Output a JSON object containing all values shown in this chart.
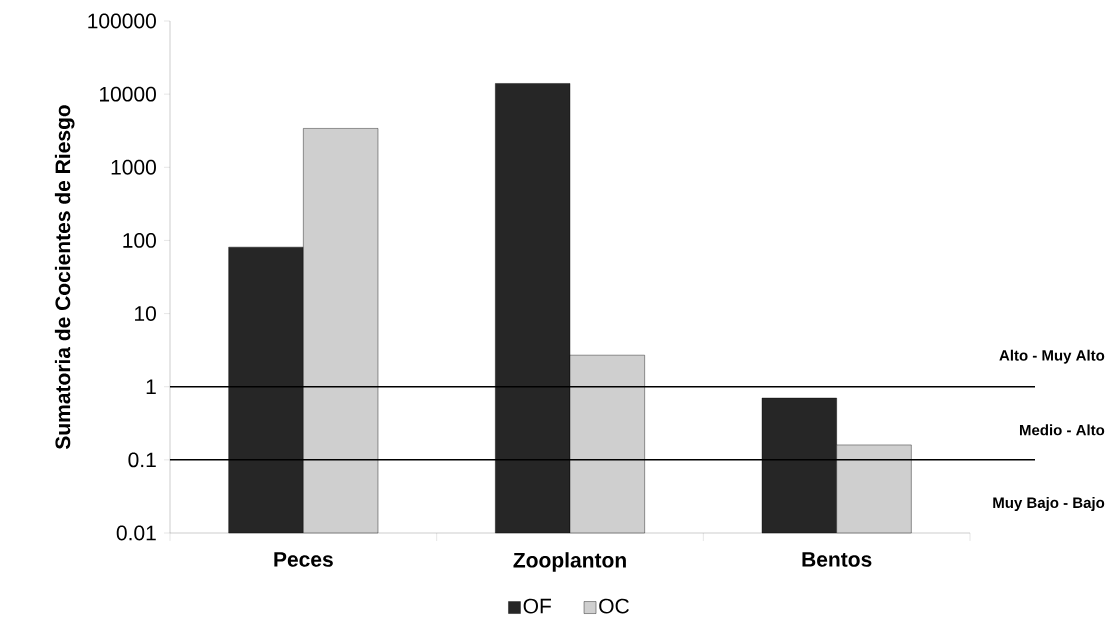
{
  "chart_data": {
    "type": "bar",
    "ylabel": "Sumatoria de Cocientes de Riesgo",
    "categories": [
      "Peces",
      "Zooplanton",
      "Bentos"
    ],
    "series": [
      {
        "name": "OF",
        "color": "#262626",
        "values": [
          81,
          14000,
          0.7
        ]
      },
      {
        "name": "OC",
        "color": "#cfcfcf",
        "values": [
          3400,
          2.7,
          0.16
        ]
      }
    ],
    "log": "y",
    "ylim": [
      0.01,
      100000
    ],
    "yticks": [
      0.01,
      0.1,
      1,
      10,
      100,
      1000,
      10000,
      100000
    ],
    "ref_lines": [
      {
        "axis": "y",
        "value": 1,
        "label": "Alto - Muy Alto",
        "color": "#000000"
      },
      {
        "axis": "y",
        "value": 0.1,
        "label": "Medio - Alto",
        "color": "#000000"
      }
    ],
    "annotations": [
      "Muy Bajo - Bajo"
    ],
    "legend": "bottom",
    "grid": false
  }
}
